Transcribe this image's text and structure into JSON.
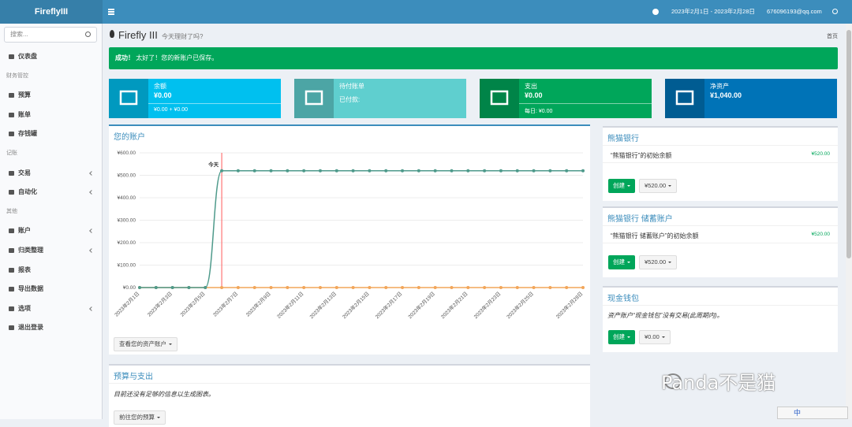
{
  "topbar": {
    "brand": "FireflyIII",
    "period": "2023年2月1日 - 2023年2月28日",
    "user": "676096193@qq.com"
  },
  "sidebar": {
    "search_placeholder": "搜索...",
    "items": [
      {
        "label": "仪表盘",
        "kind": "link"
      },
      {
        "label": "财务管控",
        "kind": "header"
      },
      {
        "label": "预算",
        "kind": "link"
      },
      {
        "label": "账单",
        "kind": "link"
      },
      {
        "label": "存钱罐",
        "kind": "link"
      },
      {
        "label": "记账",
        "kind": "header"
      },
      {
        "label": "交易",
        "kind": "link",
        "submenu": true
      },
      {
        "label": "自动化",
        "kind": "link",
        "submenu": true
      },
      {
        "label": "其他",
        "kind": "header"
      },
      {
        "label": "账户",
        "kind": "link",
        "submenu": true
      },
      {
        "label": "归类整理",
        "kind": "link",
        "submenu": true
      },
      {
        "label": "报表",
        "kind": "link"
      },
      {
        "label": "导出数据",
        "kind": "link"
      },
      {
        "label": "选项",
        "kind": "link",
        "submenu": true
      },
      {
        "label": "退出登录",
        "kind": "link"
      }
    ]
  },
  "page_header": {
    "title": "Firefly III",
    "subtitle": "今天理财了吗?",
    "breadcrumb": "首页"
  },
  "alert": {
    "strong": "成功！",
    "text": "太好了！您的新账户已保存。"
  },
  "info_boxes": [
    {
      "label": "余额",
      "value": "¥0.00",
      "footer": "¥0.00 + ¥0.00",
      "color": "#00c0ef"
    },
    {
      "label": "待付账单",
      "note": "已付款:",
      "color": "#5fcfcf"
    },
    {
      "label": "支出",
      "value": "¥0.00",
      "footer": "每日: ¥0.00",
      "color": "#00a65a"
    },
    {
      "label": "净资产",
      "value": "¥1,040.00",
      "color": "#0073b7"
    }
  ],
  "accounts_chart": {
    "type": "line",
    "title": "您的账户",
    "categories": [
      "2023年2月1日",
      null,
      "2023年2月3日",
      null,
      "2023年2月5日",
      null,
      "2023年2月7日",
      null,
      "2023年2月9日",
      null,
      "2023年2月11日",
      null,
      "2023年2月13日",
      null,
      "2023年2月15日",
      null,
      "2023年2月17日",
      null,
      "2023年2月19日",
      null,
      "2023年2月21日",
      null,
      "2023年2月23日",
      null,
      "2023年2月25日",
      null,
      null,
      "2023年2月28日"
    ],
    "series": [
      {
        "color": "#4e9a8b",
        "values": [
          0,
          0,
          0,
          0,
          0,
          520,
          520,
          520,
          520,
          520,
          520,
          520,
          520,
          520,
          520,
          520,
          520,
          520,
          520,
          520,
          520,
          520,
          520,
          520,
          520,
          520,
          520,
          520
        ]
      },
      {
        "color": "#f2a65a",
        "values": [
          0,
          0,
          0,
          0,
          0,
          0,
          0,
          0,
          0,
          0,
          0,
          0,
          0,
          0,
          0,
          0,
          0,
          0,
          0,
          0,
          0,
          0,
          0,
          0,
          0,
          0,
          0,
          0
        ]
      }
    ],
    "ylim": [
      0,
      600
    ],
    "yticks": [
      {
        "value": 0,
        "label": "¥0.00"
      },
      {
        "value": 100,
        "label": "¥100.00"
      },
      {
        "value": 200,
        "label": "¥200.00"
      },
      {
        "value": 300,
        "label": "¥300.00"
      },
      {
        "value": 400,
        "label": "¥400.00"
      },
      {
        "value": 500,
        "label": "¥500.00"
      },
      {
        "value": 600,
        "label": "¥600.00"
      }
    ],
    "grid": true,
    "annotation": {
      "label": "今天",
      "at": 5,
      "color": "#ff5a5a"
    },
    "button": "查看您的资产账户"
  },
  "budget_box": {
    "title": "预算与支出",
    "text": "目前还没有足够的信息以生成图表。",
    "button": "前往您的预算"
  },
  "accounts": [
    {
      "name": "熊猫银行",
      "rows": [
        {
          "description": "“熊猫银行”的初始余额",
          "amount": "¥520.00"
        }
      ],
      "create": "创建",
      "balance": "¥520.00"
    },
    {
      "name": "熊猫银行 储蓄账户",
      "rows": [
        {
          "description": "“熊猫银行 储蓄账户”的初始余额",
          "amount": "¥520.00"
        }
      ],
      "create": "创建",
      "balance": "¥520.00"
    },
    {
      "name": "现金钱包",
      "empty": "资产账户“现金钱包”没有交易(此周期内)。",
      "create": "创建",
      "balance": "¥0.00"
    }
  ],
  "watermark": "Panda不是猫",
  "ime": "中"
}
